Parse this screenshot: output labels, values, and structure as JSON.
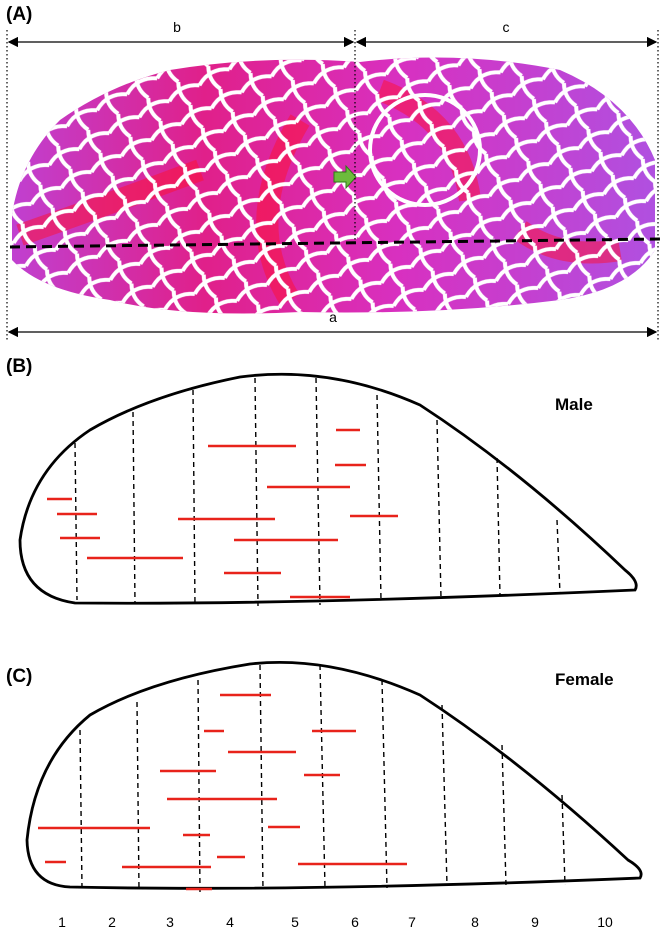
{
  "panel_a": {
    "label": "(A)",
    "b": "b",
    "c": "c",
    "a": "a"
  },
  "panel_b": {
    "label": "(B)",
    "title": "Male"
  },
  "panel_c": {
    "label": "(C)",
    "title": "Female"
  },
  "x_labels": [
    "1",
    "2",
    "3",
    "4",
    "5",
    "6",
    "7",
    "8",
    "9",
    "10"
  ]
}
